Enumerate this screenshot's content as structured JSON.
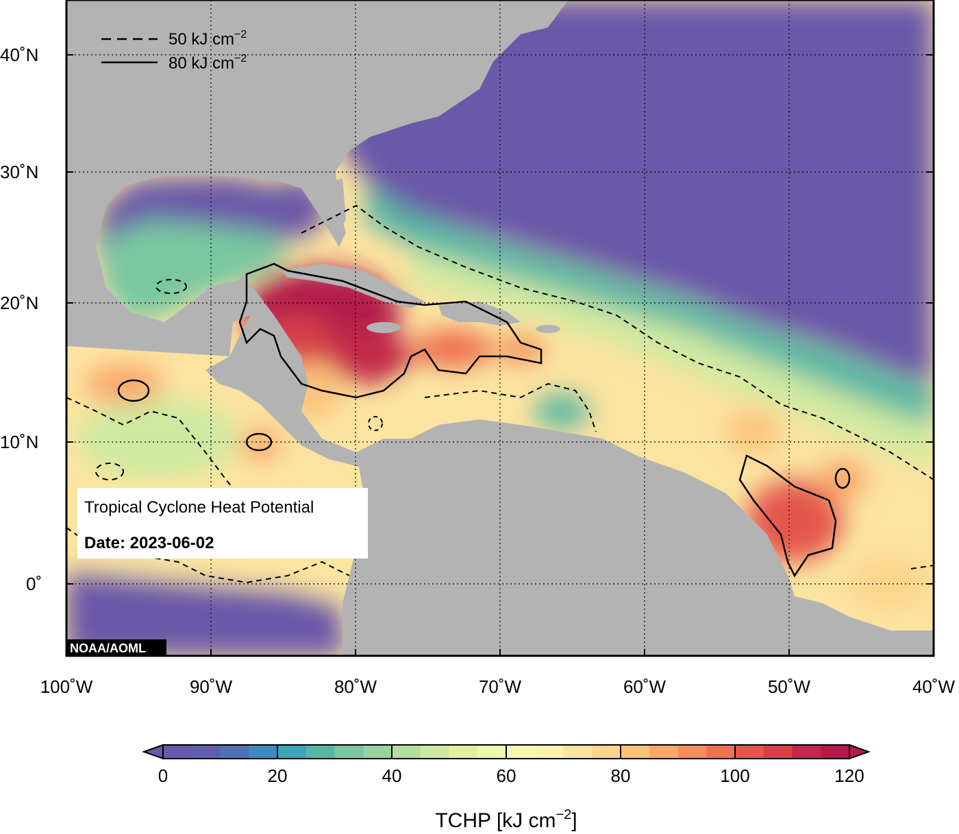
{
  "info_box": {
    "title": "Tropical Cyclone Heat Potential",
    "date_label": "Date: 2023-06-02"
  },
  "credit": "NOAA/AOML",
  "contour_legend": [
    {
      "style": "dashed",
      "value_text": "50 kJ cm",
      "exponent": "−2"
    },
    {
      "style": "solid",
      "value_text": "80 kJ cm",
      "exponent": "−2"
    }
  ],
  "axes": {
    "lon_ticks": [
      "100˚W",
      "90˚W",
      "80˚W",
      "70˚W",
      "60˚W",
      "50˚W",
      "40˚W"
    ],
    "lat_ticks": [
      "40˚N",
      "30˚N",
      "20˚N",
      "10˚N",
      "0˚"
    ],
    "lon_range": [
      -100,
      -40
    ],
    "lat_range": [
      -5,
      45
    ],
    "gridlines": "dotted"
  },
  "colorbar": {
    "title": "TCHP [kJ cm",
    "title_exponent": "−2",
    "title_close": "]",
    "tick_labels": [
      "0",
      "20",
      "40",
      "60",
      "80",
      "100",
      "120"
    ],
    "range": [
      0,
      120
    ],
    "step": 5,
    "colors": [
      "#6a58a8",
      "#5f5fb0",
      "#4f71b4",
      "#3b8cc0",
      "#3ca5b8",
      "#58b7a4",
      "#79c7a1",
      "#99d3a2",
      "#b4dea1",
      "#cde9a1",
      "#e0f1a2",
      "#eef7ab",
      "#f8f8b3",
      "#fcf2b0",
      "#fde5a0",
      "#fdd58c",
      "#fcc27a",
      "#f9a86a",
      "#f58e5b",
      "#ee7252",
      "#e4574d",
      "#d64048",
      "#c3294a",
      "#b31a4c"
    ],
    "extend": "both"
  },
  "colors": {
    "land": "#b3b3b3",
    "background": "#ffffff"
  }
}
